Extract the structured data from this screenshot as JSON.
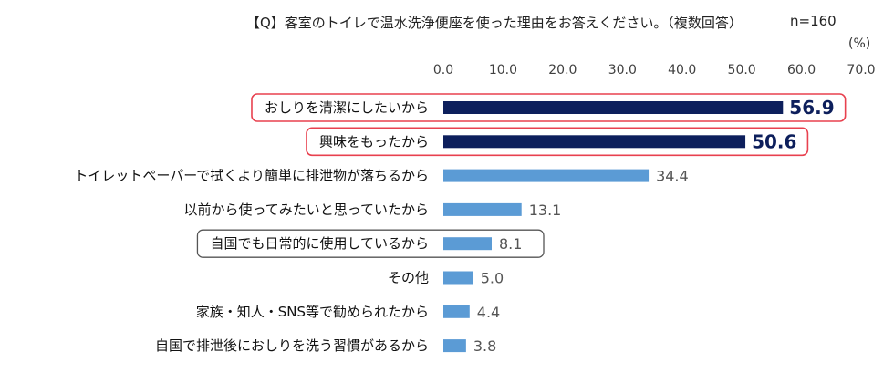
{
  "chart_data": {
    "type": "bar",
    "orientation": "horizontal",
    "title": "【Q】客室のトイレで温水洗浄便座を使った理由をお答えください。（複数回答）",
    "sample_size": "n=160",
    "unit": "(%)",
    "xlim": [
      0,
      70
    ],
    "ticks": [
      "0.0",
      "10.0",
      "20.0",
      "30.0",
      "40.0",
      "50.0",
      "60.0",
      "70.0"
    ],
    "grid": false,
    "categories": [
      "おしりを清潔にしたいから",
      "興味をもったから",
      "トイレットペーパーで拭くより簡単に排泄物が落ちるから",
      "以前から使ってみたいと思っていたから",
      "自国でも日常的に使用しているから",
      "その他",
      "家族・知人・SNS等で勧められたから",
      "自国で排泄後におしりを洗う習慣があるから"
    ],
    "values": [
      56.9,
      50.6,
      34.4,
      13.1,
      8.1,
      5.0,
      4.4,
      3.8
    ],
    "value_labels": [
      "56.9",
      "50.6",
      "34.4",
      "13.1",
      "8.1",
      "5.0",
      "4.4",
      "3.8"
    ],
    "highlighted_red": [
      0,
      1
    ],
    "highlighted_gray": [
      4
    ],
    "colors": {
      "emphasis_bar": "#0d1f5c",
      "bar": "#5b9bd5",
      "red_frame": "#e8414f",
      "gray_frame": "#555555"
    }
  }
}
